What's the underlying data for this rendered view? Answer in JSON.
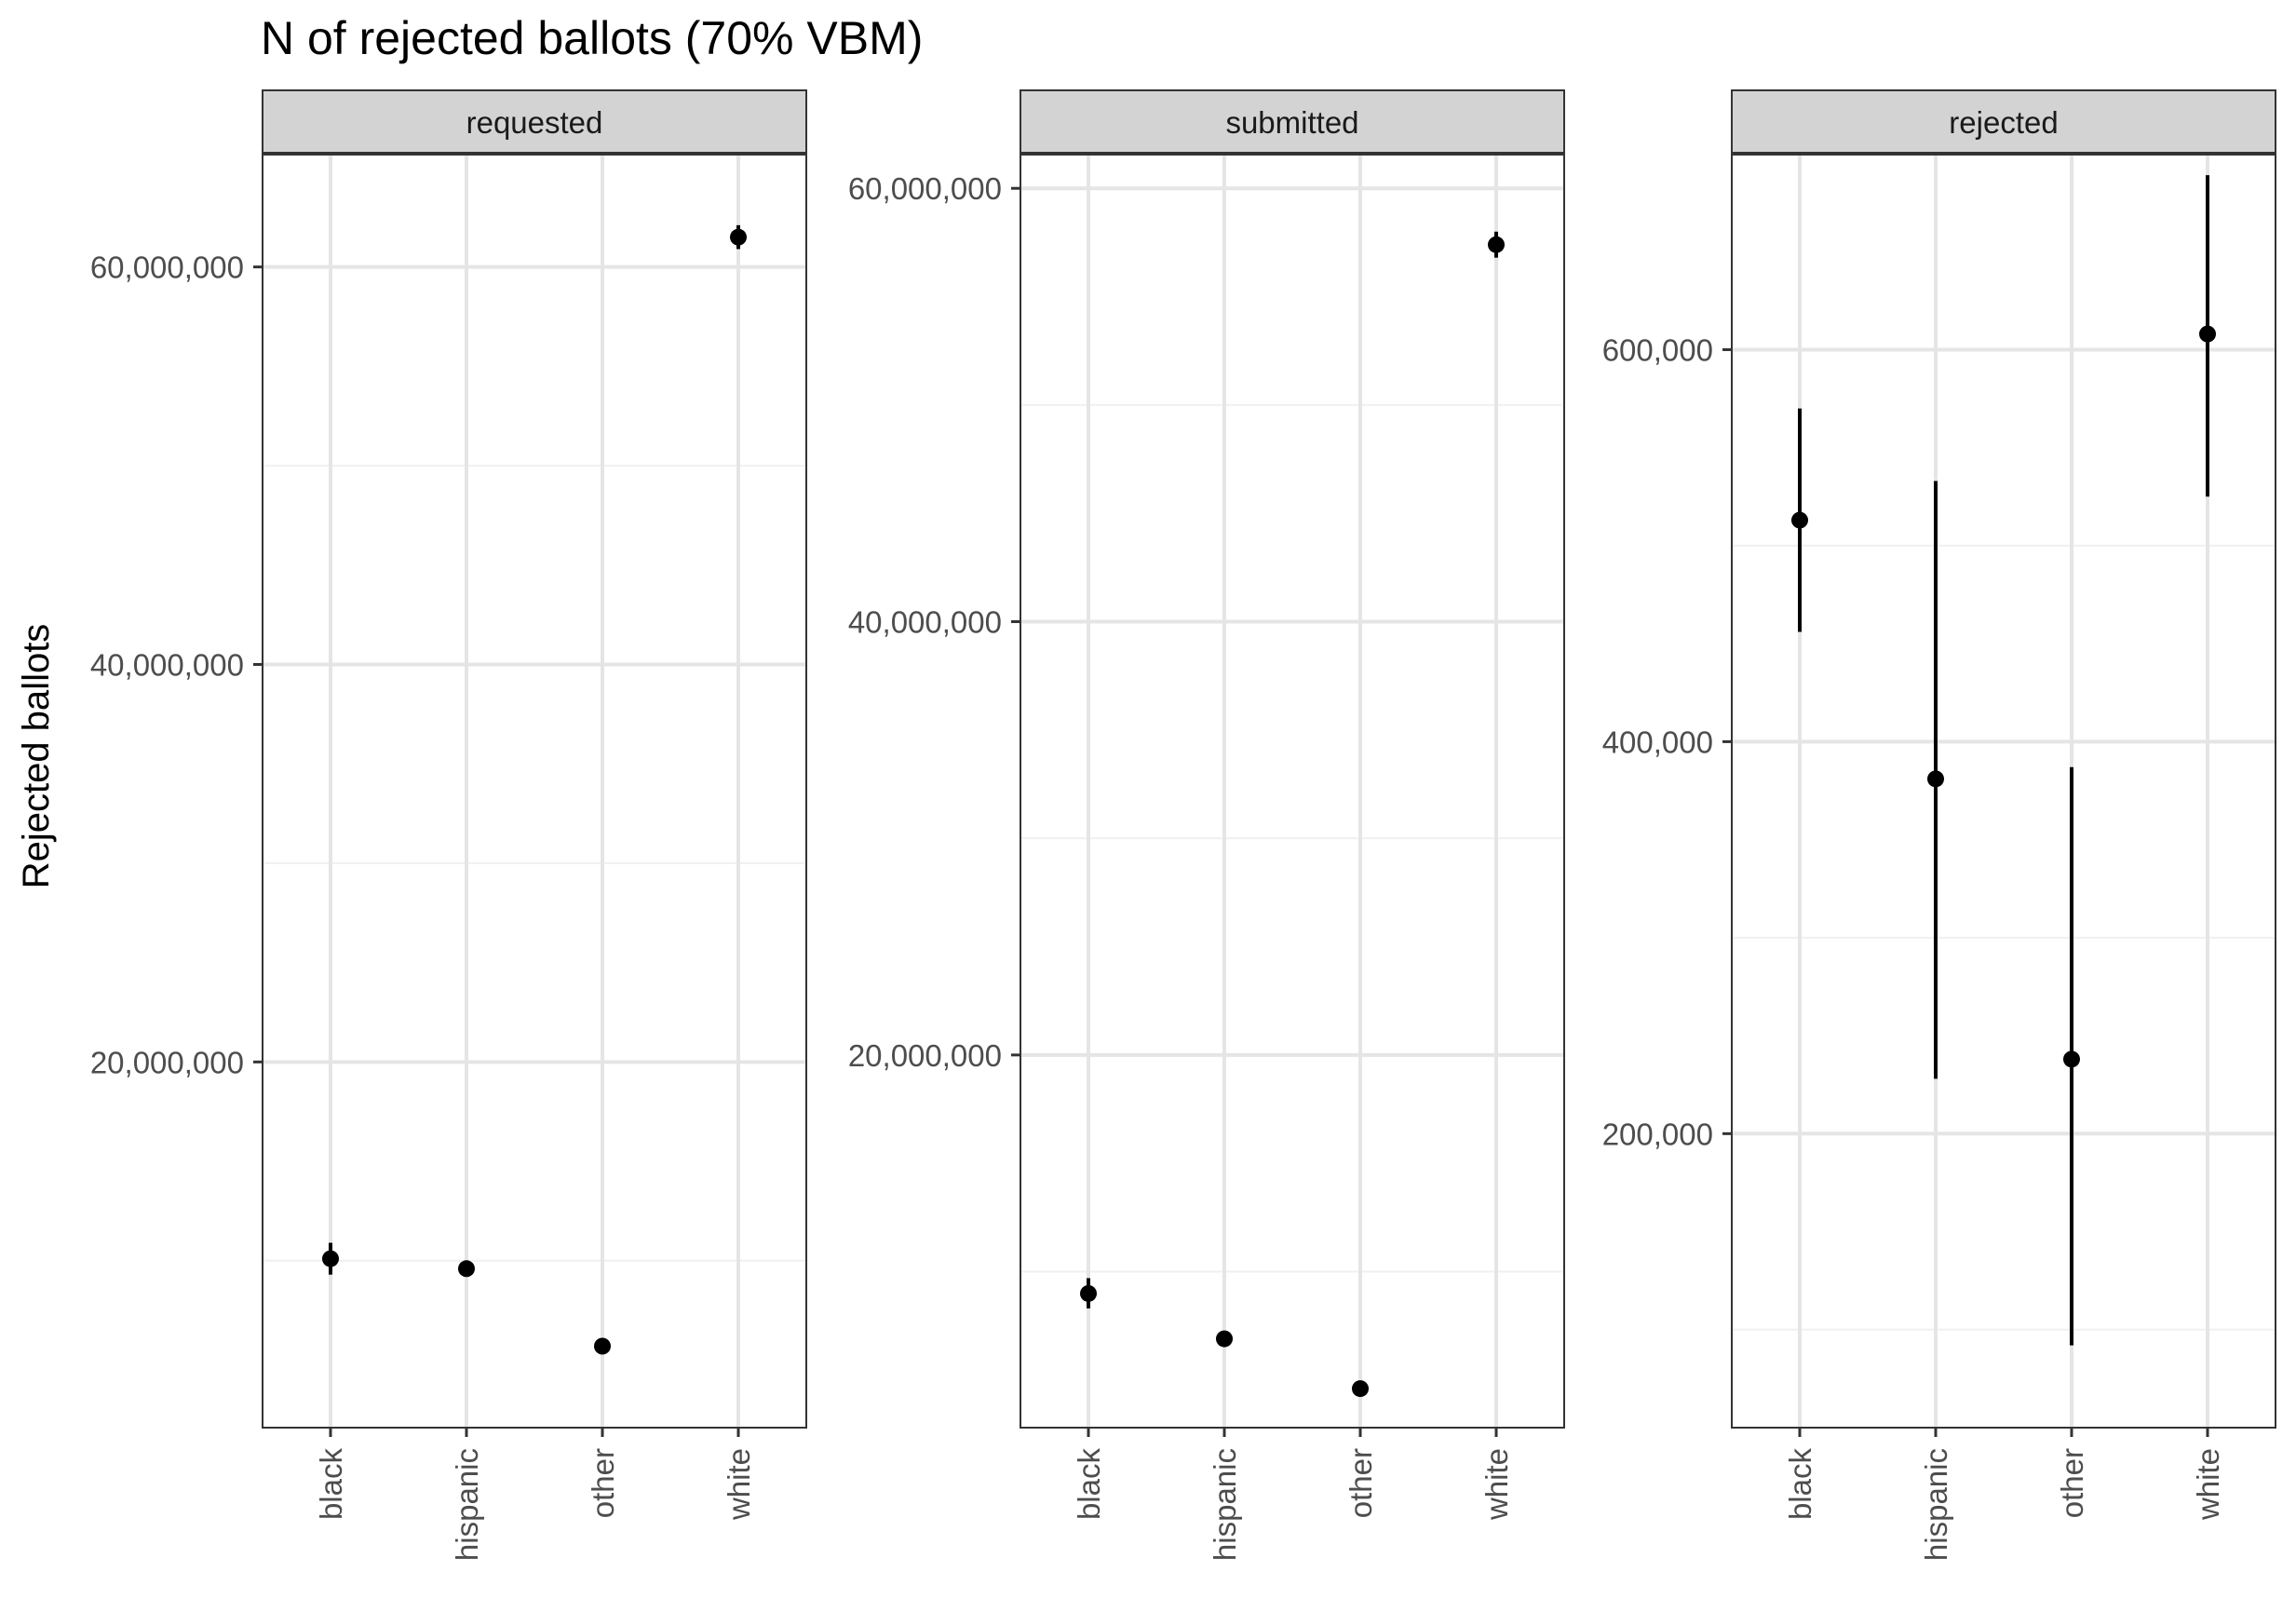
{
  "chart_data": {
    "type": "scatter",
    "title": "N of rejected ballots (70% VBM)",
    "ylabel": "Rejected ballots",
    "xlabel": "",
    "categories": [
      "black",
      "hispanic",
      "other",
      "white"
    ],
    "grid": true,
    "legend": "none",
    "colors": {
      "point": "#000000",
      "strip_fill": "#d3d3d3",
      "strip_border": "#333333",
      "grid_major": "#e5e5e5",
      "grid_minor": "#f0f0f0",
      "tick_text": "#4d4d4d"
    },
    "panels": [
      {
        "strip_label": "requested",
        "ylim": [
          1600000,
          65700000
        ],
        "y_ticks": [
          20000000,
          40000000,
          60000000
        ],
        "y_tick_labels": [
          "20,000,000",
          "40,000,000",
          "60,000,000"
        ],
        "y_minor": [
          10000000,
          30000000,
          50000000
        ],
        "points": [
          {
            "x": "black",
            "y": 10100000,
            "low": 9300000,
            "high": 10900000
          },
          {
            "x": "hispanic",
            "y": 9600000,
            "low": 9500000,
            "high": 9700000
          },
          {
            "x": "other",
            "y": 5700000,
            "low": 5650000,
            "high": 5750000
          },
          {
            "x": "white",
            "y": 61500000,
            "low": 60900000,
            "high": 62100000
          }
        ]
      },
      {
        "strip_label": "submitted",
        "ylim": [
          2800000,
          61600000
        ],
        "y_ticks": [
          20000000,
          40000000,
          60000000
        ],
        "y_tick_labels": [
          "20,000,000",
          "40,000,000",
          "60,000,000"
        ],
        "y_minor": [
          10000000,
          30000000,
          50000000
        ],
        "points": [
          {
            "x": "black",
            "y": 8990000,
            "low": 8300000,
            "high": 9700000
          },
          {
            "x": "hispanic",
            "y": 6900000,
            "low": 6800000,
            "high": 7000000
          },
          {
            "x": "other",
            "y": 4600000,
            "low": 4550000,
            "high": 4650000
          },
          {
            "x": "white",
            "y": 57400000,
            "low": 56800000,
            "high": 58000000
          }
        ]
      },
      {
        "strip_label": "rejected",
        "ylim": [
          50000,
          700000
        ],
        "y_ticks": [
          200000,
          400000,
          600000
        ],
        "y_tick_labels": [
          "200,000",
          "400,000",
          "600,000"
        ],
        "y_minor": [
          100000,
          300000,
          500000,
          700000
        ],
        "points": [
          {
            "x": "black",
            "y": 513000,
            "low": 456000,
            "high": 570000
          },
          {
            "x": "hispanic",
            "y": 381000,
            "low": 228000,
            "high": 533000
          },
          {
            "x": "other",
            "y": 238000,
            "low": 92000,
            "high": 387000
          },
          {
            "x": "white",
            "y": 608000,
            "low": 525000,
            "high": 689000
          }
        ]
      }
    ]
  }
}
